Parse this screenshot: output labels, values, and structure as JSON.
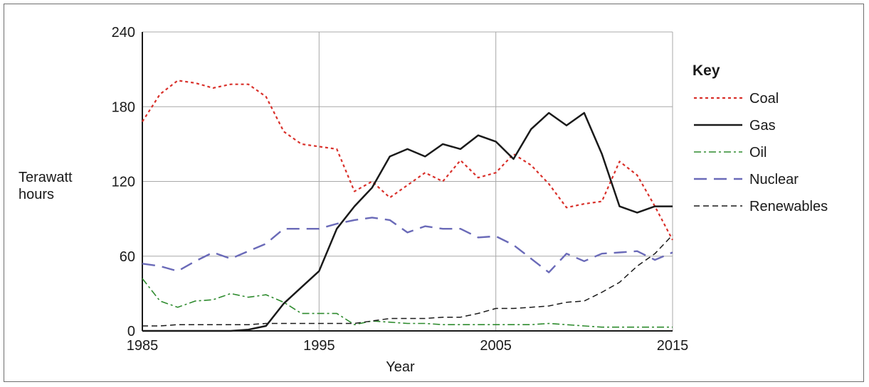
{
  "chart_data": {
    "type": "line",
    "title": "",
    "xlabel": "Year",
    "ylabel_lines": [
      "Terawatt",
      "hours"
    ],
    "xlim": [
      1985,
      2015
    ],
    "ylim": [
      0,
      240
    ],
    "x_ticks": [
      1985,
      1995,
      2005,
      2015
    ],
    "y_ticks": [
      0,
      60,
      120,
      180,
      240
    ],
    "grid": true,
    "legend": {
      "title": "Key",
      "position": "right"
    },
    "x": [
      1985,
      1986,
      1987,
      1988,
      1989,
      1990,
      1991,
      1992,
      1993,
      1994,
      1995,
      1996,
      1997,
      1998,
      1999,
      2000,
      2001,
      2002,
      2003,
      2004,
      2005,
      2006,
      2007,
      2008,
      2009,
      2010,
      2011,
      2012,
      2013,
      2014,
      2015
    ],
    "series": [
      {
        "name": "Coal",
        "color": "#d9302a",
        "dash": "dotted",
        "values": [
          168,
          190,
          201,
          199,
          195,
          198,
          198,
          188,
          160,
          150,
          148,
          146,
          112,
          120,
          107,
          117,
          127,
          120,
          137,
          123,
          127,
          142,
          133,
          118,
          99,
          102,
          104,
          136,
          125,
          100,
          73
        ]
      },
      {
        "name": "Gas",
        "color": "#1a1a1a",
        "dash": "solid",
        "values": [
          0,
          0,
          0,
          0,
          0,
          0,
          1,
          4,
          22,
          35,
          48,
          82,
          100,
          115,
          140,
          146,
          140,
          150,
          146,
          157,
          152,
          138,
          162,
          175,
          165,
          175,
          142,
          100,
          95,
          100,
          100
        ]
      },
      {
        "name": "Oil",
        "color": "#2e8b2e",
        "dash": "dashdot",
        "values": [
          42,
          24,
          19,
          24,
          25,
          30,
          27,
          29,
          23,
          14,
          14,
          14,
          5,
          8,
          7,
          6,
          6,
          5,
          5,
          5,
          5,
          5,
          5,
          6,
          5,
          4,
          3,
          3,
          3,
          3,
          3
        ]
      },
      {
        "name": "Nuclear",
        "color": "#6a6ab8",
        "dash": "longdash",
        "values": [
          54,
          52,
          48,
          56,
          63,
          58,
          64,
          70,
          82,
          82,
          82,
          86,
          89,
          91,
          89,
          79,
          84,
          82,
          82,
          75,
          76,
          69,
          58,
          47,
          62,
          56,
          62,
          63,
          64,
          57,
          63
        ]
      },
      {
        "name": "Renewables",
        "color": "#1a1a1a",
        "dash": "shortdash",
        "values": [
          4,
          4,
          5,
          5,
          5,
          5,
          5,
          6,
          6,
          6,
          6,
          6,
          6,
          8,
          10,
          10,
          10,
          11,
          11,
          14,
          18,
          18,
          19,
          20,
          23,
          24,
          31,
          39,
          52,
          62,
          77
        ]
      }
    ]
  }
}
